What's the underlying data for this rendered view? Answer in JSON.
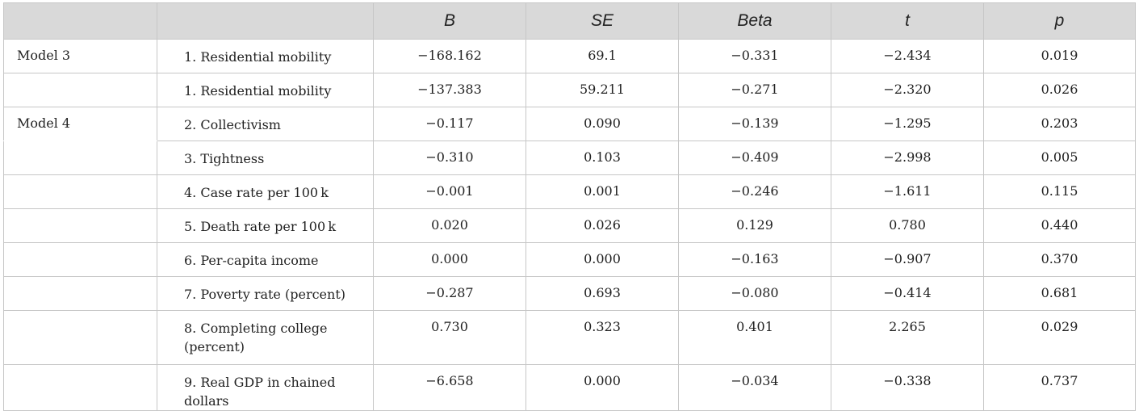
{
  "table": {
    "headers": [
      "",
      "",
      "B",
      "SE",
      "Beta",
      "t",
      "p"
    ],
    "rows": [
      {
        "model": "Model 3",
        "variable": "1. Residential mobility",
        "B": "−168.162",
        "SE": "69.1",
        "Beta": "−0.331",
        "t": "−2.434",
        "p": "0.019"
      },
      {
        "model": "",
        "variable": "1. Residential mobility",
        "B": "−137.383",
        "SE": "59.211",
        "Beta": "−0.271",
        "t": "−2.320",
        "p": "0.026"
      },
      {
        "model": "Model 4",
        "variable": "2. Collectivism",
        "B": "−0.117",
        "SE": "0.090",
        "Beta": "−0.139",
        "t": "−1.295",
        "p": "0.203"
      },
      {
        "model": "",
        "variable": "3. Tightness",
        "B": "−0.310",
        "SE": "0.103",
        "Beta": "−0.409",
        "t": "−2.998",
        "p": "0.005"
      },
      {
        "model": "",
        "variable": "4. Case rate per 100 k",
        "B": "−0.001",
        "SE": "0.001",
        "Beta": "−0.246",
        "t": "−1.611",
        "p": "0.115"
      },
      {
        "model": "",
        "variable": "5. Death rate per 100 k",
        "B": "0.020",
        "SE": "0.026",
        "Beta": "0.129",
        "t": "0.780",
        "p": "0.440"
      },
      {
        "model": "",
        "variable": "6. Per-capita income",
        "B": "0.000",
        "SE": "0.000",
        "Beta": "−0.163",
        "t": "−0.907",
        "p": "0.370"
      },
      {
        "model": "",
        "variable": "7. Poverty rate (percent)",
        "B": "−0.287",
        "SE": "0.693",
        "Beta": "−0.080",
        "t": "−0.414",
        "p": "0.681"
      },
      {
        "model": "",
        "variable": "8. Completing college (percent)",
        "B": "0.730",
        "SE": "0.323",
        "Beta": "0.401",
        "t": "2.265",
        "p": "0.029"
      },
      {
        "model": "",
        "variable": "9. Real GDP in chained dollars",
        "B": "−6.658",
        "SE": "0.000",
        "Beta": "−0.034",
        "t": "−0.338",
        "p": "0.737"
      }
    ]
  }
}
